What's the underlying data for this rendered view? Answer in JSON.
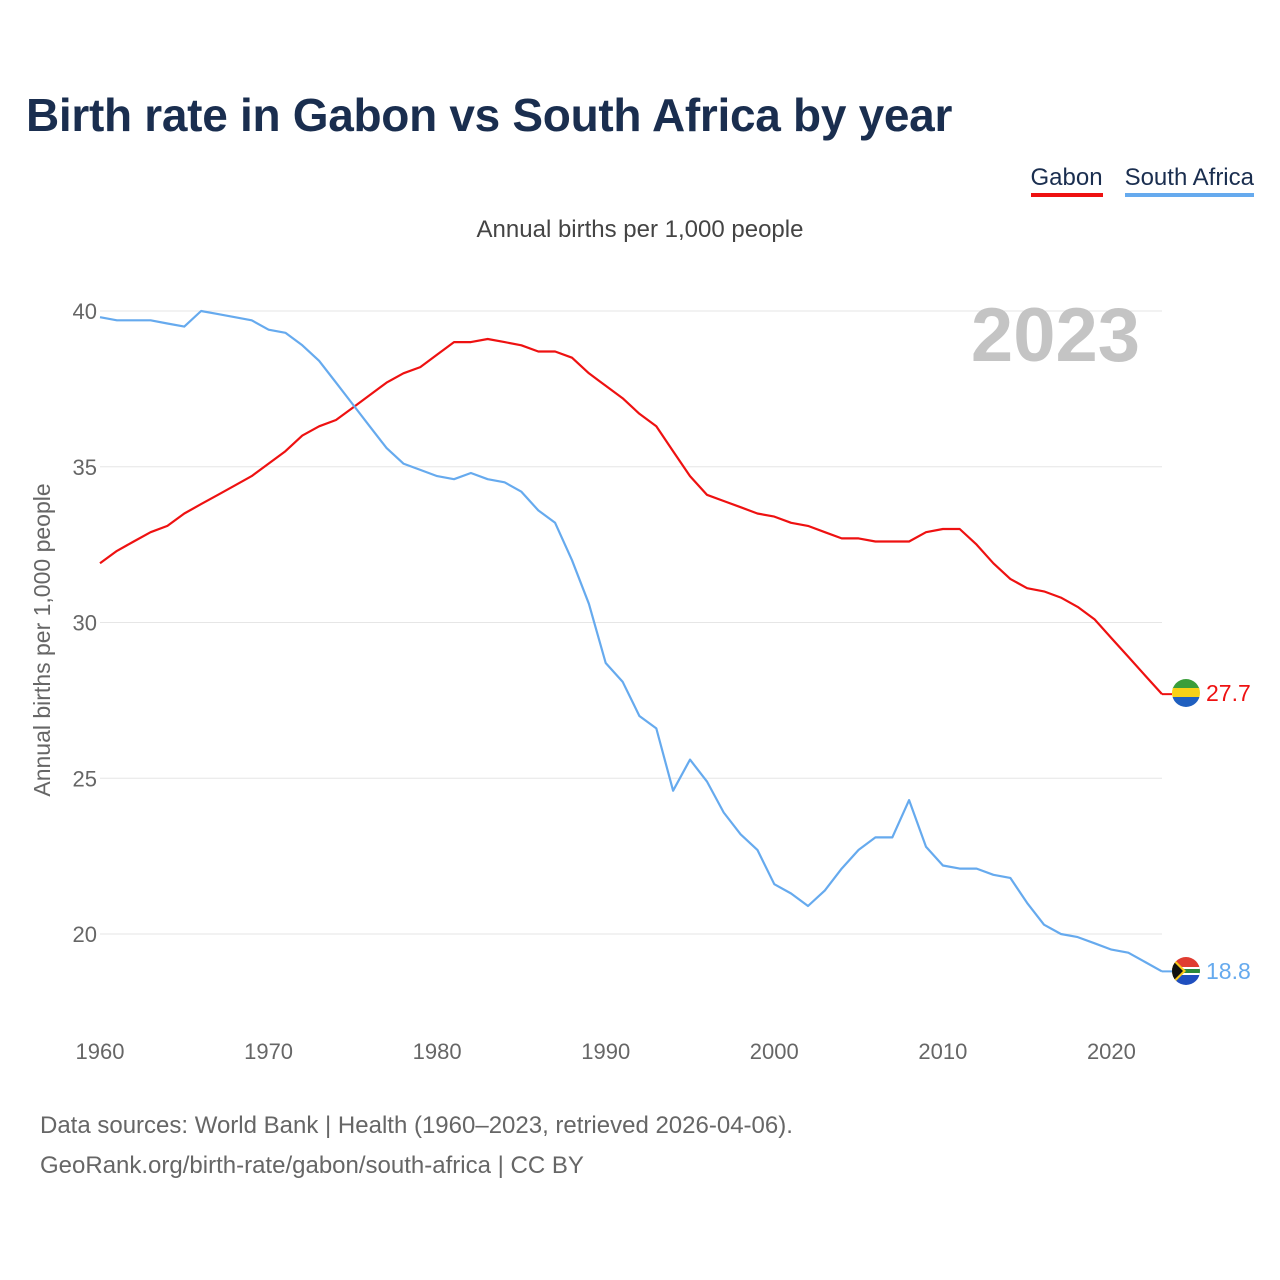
{
  "title": "Birth rate in Gabon vs South Africa by year",
  "subtitle": "Annual births per 1,000 people",
  "footer": {
    "line1": "Data sources: World Bank | Health (1960–2023, retrieved 2026-04-06).",
    "line2": "GeoRank.org/birth-rate/gabon/south-africa | CC BY"
  },
  "colors": {
    "gabon": "#ee1111",
    "south_africa": "#66aaee",
    "grid": "#e6e6e6"
  },
  "chart_data": {
    "type": "line",
    "title": "Birth rate in Gabon vs South Africa by year",
    "ylabel": "Annual births per 1,000 people",
    "xlabel": "",
    "xlim": [
      1960,
      2023
    ],
    "ylim": [
      17.5,
      40
    ],
    "yticks": [
      20,
      25,
      30,
      35,
      40
    ],
    "xticks": [
      1960,
      1970,
      1980,
      1990,
      2000,
      2010,
      2020
    ],
    "highlight_year": "2023",
    "legend_position": "top-right",
    "x": [
      1960,
      1961,
      1962,
      1963,
      1964,
      1965,
      1966,
      1967,
      1968,
      1969,
      1970,
      1971,
      1972,
      1973,
      1974,
      1975,
      1976,
      1977,
      1978,
      1979,
      1980,
      1981,
      1982,
      1983,
      1984,
      1985,
      1986,
      1987,
      1988,
      1989,
      1990,
      1991,
      1992,
      1993,
      1994,
      1995,
      1996,
      1997,
      1998,
      1999,
      2000,
      2001,
      2002,
      2003,
      2004,
      2005,
      2006,
      2007,
      2008,
      2009,
      2010,
      2011,
      2012,
      2013,
      2014,
      2015,
      2016,
      2017,
      2018,
      2019,
      2020,
      2021,
      2022,
      2023
    ],
    "series": [
      {
        "name": "Gabon",
        "color": "#ee1111",
        "end_label": "27.7",
        "values": [
          31.9,
          32.3,
          32.6,
          32.9,
          33.1,
          33.5,
          33.8,
          34.1,
          34.4,
          34.7,
          35.1,
          35.5,
          36.0,
          36.3,
          36.5,
          36.9,
          37.3,
          37.7,
          38.0,
          38.2,
          38.6,
          39.0,
          39.0,
          39.1,
          39.0,
          38.9,
          38.7,
          38.7,
          38.5,
          38.0,
          37.6,
          37.2,
          36.7,
          36.3,
          35.5,
          34.7,
          34.1,
          33.9,
          33.7,
          33.5,
          33.4,
          33.2,
          33.1,
          32.9,
          32.7,
          32.7,
          32.6,
          32.6,
          32.6,
          32.9,
          33.0,
          33.0,
          32.5,
          31.9,
          31.4,
          31.1,
          31.0,
          30.8,
          30.5,
          30.1,
          29.5,
          28.9,
          28.3,
          27.7
        ]
      },
      {
        "name": "South Africa",
        "color": "#66aaee",
        "end_label": "18.8",
        "values": [
          39.8,
          39.7,
          39.7,
          39.7,
          39.6,
          39.5,
          40.0,
          39.9,
          39.8,
          39.7,
          39.4,
          39.3,
          38.9,
          38.4,
          37.7,
          37.0,
          36.3,
          35.6,
          35.1,
          34.9,
          34.7,
          34.6,
          34.8,
          34.6,
          34.5,
          34.2,
          33.6,
          33.2,
          32.0,
          30.6,
          28.7,
          28.1,
          27.0,
          26.6,
          24.6,
          25.6,
          24.9,
          23.9,
          23.2,
          22.7,
          21.6,
          21.3,
          20.9,
          21.4,
          22.1,
          22.7,
          23.1,
          23.1,
          24.3,
          22.8,
          22.2,
          22.1,
          22.1,
          21.9,
          21.8,
          21.0,
          20.3,
          20.0,
          19.9,
          19.7,
          19.5,
          19.4,
          19.1,
          18.8
        ]
      }
    ]
  }
}
